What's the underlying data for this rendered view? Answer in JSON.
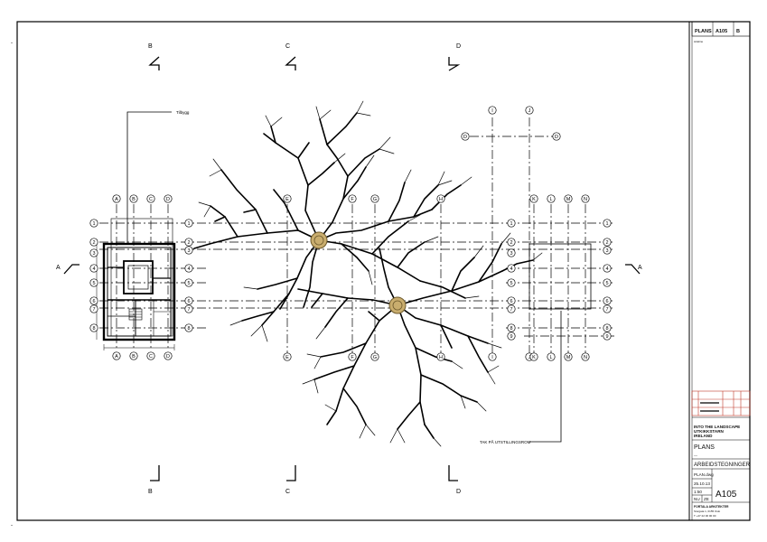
{
  "sections": {
    "top": [
      "B",
      "C",
      "D"
    ],
    "bottom": [
      "B",
      "C",
      "D"
    ],
    "left": "A",
    "right": "A"
  },
  "annotations": {
    "upper_left": "Tilbygg",
    "lower_right": "TAK PÅ UTSTILLINGSROM"
  },
  "grid_bubbles": {
    "plan1_cols": [
      "A",
      "B",
      "C",
      "D"
    ],
    "plan1_rows": [
      "1",
      "2",
      "3",
      "4",
      "5",
      "6",
      "7",
      "8"
    ],
    "plan2_cols": [
      "E",
      "F",
      "G",
      "H",
      "I",
      "J",
      "K",
      "L",
      "M",
      "N"
    ],
    "plan2_rows": [
      "1",
      "2",
      "3",
      "4",
      "5",
      "6",
      "7",
      "8",
      "9"
    ],
    "detail_cols": [
      "I",
      "J"
    ],
    "detail_rows": [
      "D",
      "D"
    ]
  },
  "title_block": {
    "sheet_label": "PLANS",
    "sheet_no": "A105",
    "rev": "B",
    "client_label": "sideline",
    "project_lines": [
      "INTO THE LANDSCAPE",
      "UTKIKKSTARN",
      "IRELAND"
    ],
    "drawing_title": "PLANS",
    "drawing_sub": "ARBEIDSTEGNINGER",
    "file": "PLAN.dwg",
    "date": "25.10.13",
    "scale": "1:50",
    "sheet_number": "A105",
    "nr": "NU",
    "rev2": "ZE",
    "office_lines": [
      "FORTALA ARKITEKTER",
      "Storgata 1, 0155 Oslo",
      "T +47 22 00 00 00"
    ]
  }
}
